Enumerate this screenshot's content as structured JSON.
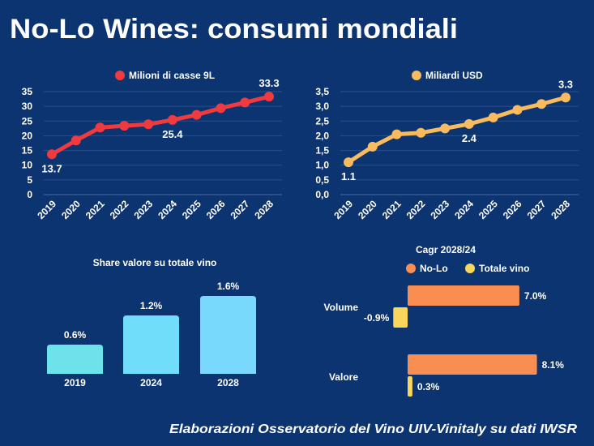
{
  "title": "No-Lo Wines: consumi mondiali",
  "footer": "Elaborazioni Osservatorio del Vino UIV-Vinitaly su dati IWSR",
  "colors": {
    "background": "#0c3470",
    "volume": "#ef3b3f",
    "value": "#f8bb5e",
    "share_bars": "#6ee0f2",
    "nolo": "#f98e53",
    "totale": "#fad65a"
  },
  "chart_data": [
    {
      "type": "line",
      "legend": "Milioni di casse 9L",
      "categories": [
        "2019",
        "2020",
        "2021",
        "2022",
        "2023",
        "2024",
        "2025",
        "2026",
        "2027",
        "2028"
      ],
      "values": [
        13.7,
        18.4,
        22.8,
        23.4,
        23.9,
        25.4,
        27.1,
        29.4,
        31.3,
        33.3
      ],
      "data_labels": {
        "0": "13.7",
        "5": "25.4",
        "9": "33.3"
      },
      "yticks": [
        "0",
        "5",
        "10",
        "15",
        "20",
        "25",
        "30",
        "35"
      ],
      "ylim": [
        0,
        35
      ],
      "grid": true,
      "legend_position": "top"
    },
    {
      "type": "line",
      "legend": "Miliardi USD",
      "categories": [
        "2019",
        "2020",
        "2021",
        "2022",
        "2023",
        "2024",
        "2025",
        "2026",
        "2027",
        "2028"
      ],
      "values": [
        1.1,
        1.63,
        2.05,
        2.1,
        2.25,
        2.4,
        2.62,
        2.88,
        3.08,
        3.3
      ],
      "data_labels": {
        "0": "1.1",
        "5": "2.4",
        "9": "3.3"
      },
      "yticks": [
        "0,0",
        "0,5",
        "1,0",
        "1,5",
        "2,0",
        "2,5",
        "3,0",
        "3,5"
      ],
      "ylim": [
        0,
        3.5
      ],
      "grid": true,
      "legend_position": "top"
    },
    {
      "type": "bar",
      "title": "Share valore su totale vino",
      "categories": [
        "2019",
        "2024",
        "2028"
      ],
      "values": [
        0.6,
        1.2,
        1.6
      ],
      "data_labels": [
        "0.6%",
        "1.2%",
        "1.6%"
      ]
    },
    {
      "type": "bar",
      "orientation": "horizontal",
      "title": "Cagr 2028/24",
      "categories": [
        "Volume",
        "Valore"
      ],
      "series": [
        {
          "name": "No-Lo",
          "values": [
            7.0,
            8.1
          ],
          "labels": [
            "7.0%",
            "8.1%"
          ]
        },
        {
          "name": "Totale vino",
          "values": [
            -0.9,
            0.3
          ],
          "labels": [
            "-0.9%",
            "0.3%"
          ]
        }
      ],
      "legend_position": "top"
    }
  ]
}
